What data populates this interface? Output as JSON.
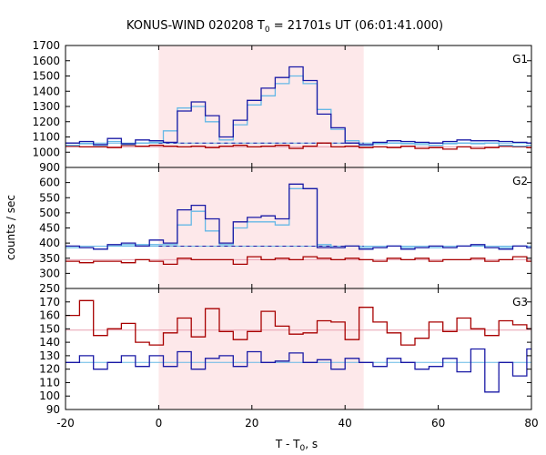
{
  "chart_data": {
    "type": "line",
    "title": "KONUS-WIND 020208 T",
    "title_sub": "0",
    "title_rest": " = 21701s UT (06:01:41.000)",
    "xlabel": "T - T",
    "xlabel_sub": "0",
    "xlabel_rest": ", s",
    "ylabel": "counts / sec",
    "xlim": [
      -20,
      80
    ],
    "x_ticks": [
      -20,
      0,
      20,
      40,
      60,
      80
    ],
    "highlight_interval": [
      0,
      44
    ],
    "highlight_color": "#fde8ea",
    "colors": {
      "blue": "#1a1aa6",
      "red": "#a80000",
      "lightblue": "#66b8e6",
      "pink": "#e8a0b0",
      "dashed": "#1a1aa6"
    },
    "panels": [
      {
        "name": "G1",
        "ylim": [
          900,
          1700
        ],
        "y_ticks": [
          900,
          1000,
          1100,
          1200,
          1300,
          1400,
          1500,
          1600,
          1700
        ],
        "hide_top_tick": false,
        "bins": {
          "start": -20,
          "width": 3
        },
        "series_blue": [
          1060,
          1070,
          1050,
          1090,
          1055,
          1080,
          1075,
          1065,
          1270,
          1330,
          1240,
          1100,
          1210,
          1340,
          1420,
          1490,
          1560,
          1470,
          1250,
          1160,
          1060,
          1050,
          1065,
          1075,
          1070,
          1065,
          1060,
          1070,
          1080,
          1075,
          1075,
          1070,
          1065,
          1060,
          1100
        ],
        "series_red": [
          1040,
          1035,
          1035,
          1030,
          1045,
          1040,
          1045,
          1040,
          1035,
          1040,
          1030,
          1040,
          1045,
          1035,
          1040,
          1045,
          1025,
          1040,
          1060,
          1035,
          1040,
          1030,
          1035,
          1030,
          1040,
          1025,
          1030,
          1020,
          1035,
          1025,
          1030,
          1040,
          1035,
          1030,
          1040
        ],
        "series_lightblue": [
          1045,
          1055,
          1045,
          1070,
          1050,
          1060,
          1065,
          1140,
          1290,
          1300,
          1200,
          1080,
          1180,
          1310,
          1370,
          1450,
          1500,
          1450,
          1280,
          1150,
          1075,
          1045,
          1055,
          1060,
          1055,
          1050,
          1045,
          1055,
          1060,
          1055,
          1060,
          1045,
          1040,
          1045,
          1090
        ],
        "bg_dashed": 1060,
        "bg_dashed_range": [
          0,
          44
        ],
        "bg_blue_line": 1060,
        "bg_pink_line": 1035,
        "label": "G1"
      },
      {
        "name": "G2",
        "ylim": [
          250,
          650
        ],
        "y_ticks": [
          250,
          300,
          350,
          400,
          450,
          500,
          550,
          600,
          650
        ],
        "hide_top_tick": true,
        "bins": {
          "start": -20,
          "width": 3
        },
        "series_blue": [
          390,
          385,
          380,
          395,
          400,
          390,
          410,
          400,
          510,
          525,
          480,
          400,
          470,
          485,
          490,
          480,
          595,
          580,
          385,
          385,
          390,
          380,
          385,
          390,
          380,
          385,
          390,
          385,
          390,
          395,
          385,
          380,
          390,
          385,
          395
        ],
        "series_red": [
          340,
          335,
          340,
          340,
          335,
          345,
          340,
          330,
          350,
          345,
          345,
          345,
          330,
          355,
          345,
          350,
          345,
          355,
          350,
          345,
          350,
          345,
          340,
          350,
          345,
          350,
          340,
          345,
          345,
          350,
          340,
          345,
          355,
          340,
          345
        ],
        "series_lightblue": [
          385,
          385,
          380,
          390,
          395,
          395,
          395,
          395,
          460,
          505,
          440,
          395,
          450,
          470,
          470,
          460,
          580,
          580,
          395,
          385,
          390,
          385,
          385,
          390,
          385,
          385,
          385,
          385,
          390,
          390,
          385,
          385,
          390,
          385,
          390
        ],
        "bg_dashed": 390,
        "bg_dashed_range": [
          0,
          44
        ],
        "bg_blue_line": 390,
        "bg_pink_line": 345,
        "label": "G2"
      },
      {
        "name": "G3",
        "ylim": [
          90,
          180
        ],
        "y_ticks": [
          90,
          100,
          110,
          120,
          130,
          140,
          150,
          160,
          170
        ],
        "hide_top_tick": false,
        "bins": {
          "start": -20,
          "width": 3
        },
        "series_blue": [
          125,
          130,
          120,
          125,
          130,
          122,
          130,
          122,
          133,
          120,
          128,
          130,
          122,
          133,
          125,
          126,
          132,
          125,
          127,
          120,
          128,
          125,
          122,
          128,
          125,
          120,
          122,
          128,
          118,
          135,
          103,
          125,
          115,
          135,
          120
        ],
        "series_red": [
          160,
          171,
          145,
          150,
          154,
          140,
          138,
          147,
          158,
          144,
          165,
          148,
          142,
          148,
          163,
          152,
          146,
          147,
          156,
          155,
          142,
          166,
          155,
          147,
          138,
          143,
          155,
          148,
          158,
          150,
          145,
          156,
          153,
          150,
          160
        ],
        "series_lightblue": [],
        "bg_dashed": null,
        "bg_dashed_range": [
          0,
          44
        ],
        "bg_blue_line": 125,
        "bg_pink_line": 149,
        "label": "G3"
      }
    ]
  }
}
